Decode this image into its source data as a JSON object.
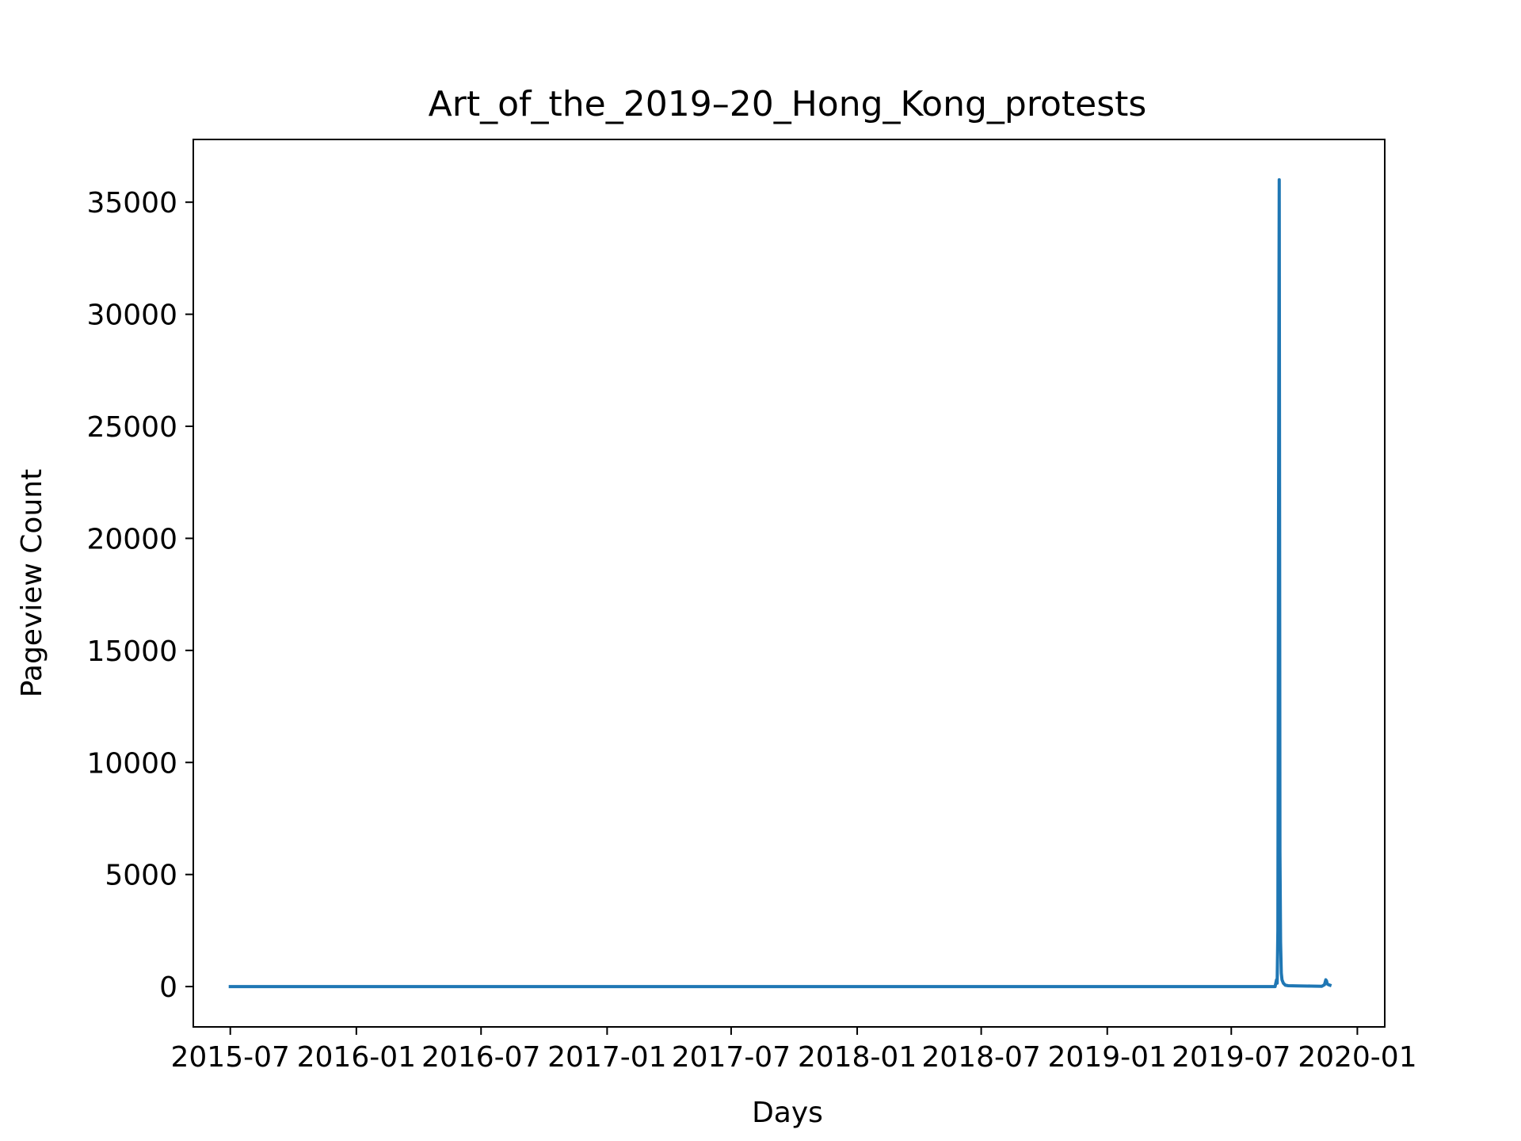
{
  "chart_data": {
    "type": "line",
    "title": "Art_of_the_2019–20_Hong_Kong_protests",
    "xlabel": "Days",
    "ylabel": "Pageview Count",
    "x_tick_labels": [
      "2015-07",
      "2016-01",
      "2016-07",
      "2017-01",
      "2017-07",
      "2018-01",
      "2018-07",
      "2019-01",
      "2019-07",
      "2020-01"
    ],
    "x_ticks": [
      "2015-07-01",
      "2016-01-01",
      "2016-07-01",
      "2017-01-01",
      "2017-07-01",
      "2018-01-01",
      "2018-07-01",
      "2019-01-01",
      "2019-07-01",
      "2020-01-01"
    ],
    "y_ticks": [
      0,
      5000,
      10000,
      15000,
      20000,
      25000,
      30000,
      35000
    ],
    "xlim": [
      "2015-05-08",
      "2020-02-10"
    ],
    "ylim": [
      -1800,
      37800
    ],
    "grid": false,
    "color": "#1f77b4",
    "series": [
      {
        "x": [
          "2015-07-01",
          "2019-08-27",
          "2019-09-03",
          "2019-09-05",
          "2019-09-06",
          "2019-09-07",
          "2019-09-08",
          "2019-09-09",
          "2019-09-10",
          "2019-09-11",
          "2019-09-12",
          "2019-09-13",
          "2019-09-15",
          "2019-09-18",
          "2019-09-22",
          "2019-10-05",
          "2019-10-25",
          "2019-11-10",
          "2019-11-14",
          "2019-11-16",
          "2019-11-17",
          "2019-11-18",
          "2019-11-20",
          "2019-11-22"
        ],
        "y": [
          0,
          0,
          0,
          300,
          150,
          2500,
          20000,
          36000,
          6000,
          2000,
          600,
          300,
          150,
          60,
          40,
          30,
          20,
          10,
          80,
          300,
          250,
          120,
          80,
          60
        ]
      }
    ]
  }
}
